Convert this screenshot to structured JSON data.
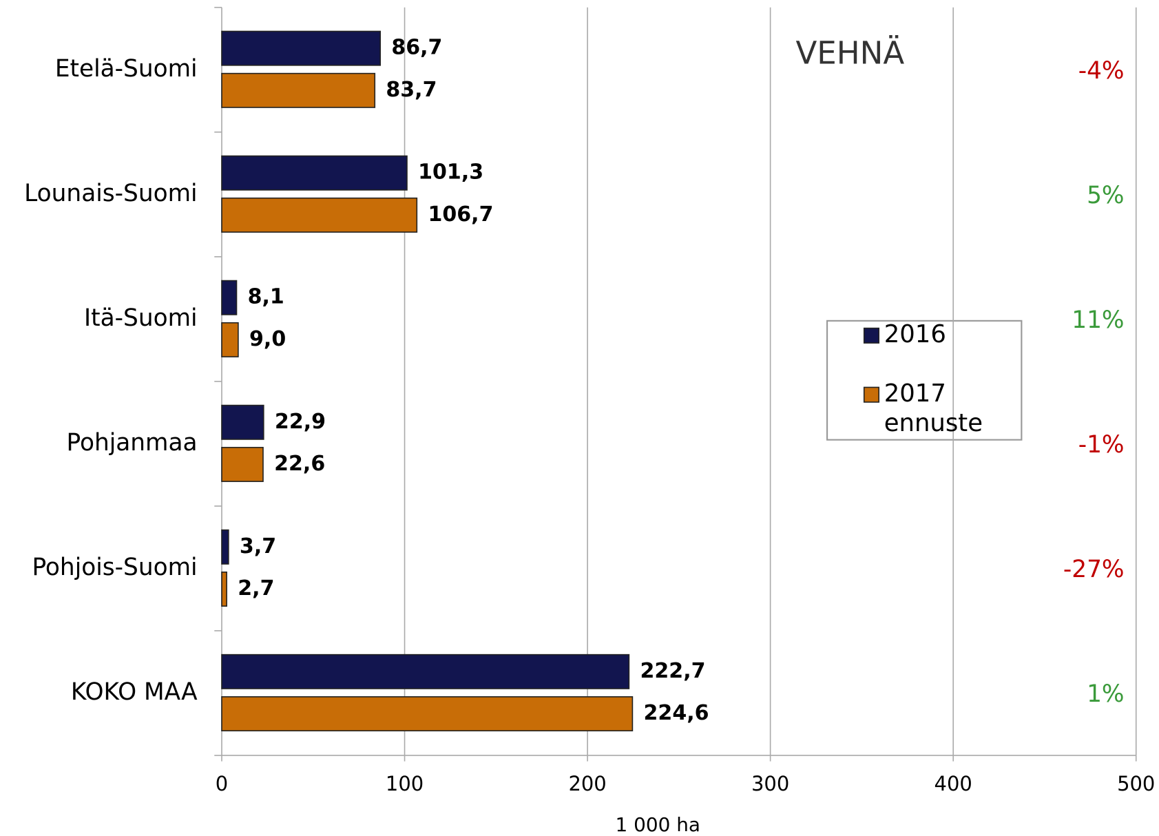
{
  "chart_data": {
    "type": "bar",
    "orientation": "horizontal",
    "title": "VEHNÄ",
    "x_axis_label": "1 000 ha",
    "categories": [
      "Etelä-Suomi",
      "Lounais-Suomi",
      "Itä-Suomi",
      "Pohjanmaa",
      "Pohjois-Suomi",
      "KOKO MAA"
    ],
    "series": [
      {
        "name": "2016",
        "color": "#12154f",
        "values": [
          86.7,
          101.3,
          8.1,
          22.9,
          3.7,
          222.7
        ],
        "value_labels": [
          "86,7",
          "101,3",
          "8,1",
          "22,9",
          "3,7",
          "222,7"
        ]
      },
      {
        "name": "2017 ennuste",
        "color": "#c86d07",
        "values": [
          83.7,
          106.7,
          9.0,
          22.6,
          2.7,
          224.6
        ],
        "value_labels": [
          "83,7",
          "106,7",
          "9,0",
          "22,6",
          "2,7",
          "224,6"
        ]
      }
    ],
    "annotations": [
      {
        "text": "-4%",
        "color": "#c00000"
      },
      {
        "text": "5%",
        "color": "#3a9a3a"
      },
      {
        "text": "11%",
        "color": "#3a9a3a"
      },
      {
        "text": "-1%",
        "color": "#c00000"
      },
      {
        "text": "-27%",
        "color": "#c00000"
      },
      {
        "text": "1%",
        "color": "#3a9a3a"
      }
    ],
    "xlim": [
      0,
      500
    ],
    "xticks": [
      0,
      100,
      200,
      300,
      400,
      500
    ],
    "grid": true
  }
}
